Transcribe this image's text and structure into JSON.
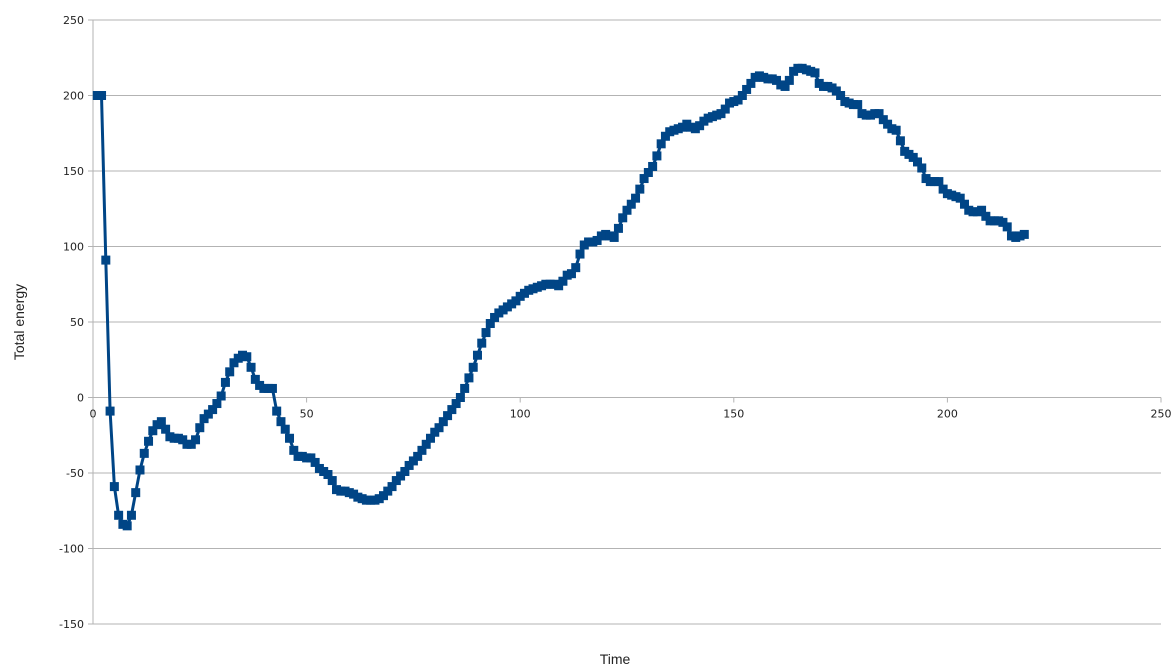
{
  "chart_data": {
    "type": "line",
    "title": "",
    "xlabel": "Time",
    "ylabel": "Total energy",
    "xlim": [
      0,
      250
    ],
    "ylim": [
      -150,
      250
    ],
    "x_ticks": [
      0,
      50,
      100,
      150,
      200,
      250
    ],
    "y_ticks": [
      250,
      200,
      150,
      100,
      50,
      0,
      -50,
      -100,
      -150
    ],
    "grid": "horizontal",
    "legend": "none",
    "colors": {
      "series": "#004586",
      "grid": "#b3b3b3",
      "axis": "#b3b3b3"
    },
    "series": [
      {
        "marker": "square",
        "points": [
          [
            1,
            200
          ],
          [
            2,
            200
          ],
          [
            3,
            91
          ],
          [
            4,
            -9
          ],
          [
            5,
            -59
          ],
          [
            6,
            -78
          ],
          [
            7,
            -84
          ],
          [
            8,
            -85
          ],
          [
            9,
            -78
          ],
          [
            10,
            -63
          ],
          [
            11,
            -48
          ],
          [
            12,
            -37
          ],
          [
            13,
            -29
          ],
          [
            14,
            -22
          ],
          [
            15,
            -18
          ],
          [
            16,
            -16
          ],
          [
            17,
            -21
          ],
          [
            18,
            -26
          ],
          [
            19,
            -27
          ],
          [
            20,
            -27
          ],
          [
            21,
            -28
          ],
          [
            22,
            -31
          ],
          [
            23,
            -31
          ],
          [
            24,
            -28
          ],
          [
            25,
            -20
          ],
          [
            26,
            -14
          ],
          [
            27,
            -11
          ],
          [
            28,
            -8
          ],
          [
            29,
            -4
          ],
          [
            30,
            1
          ],
          [
            31,
            10
          ],
          [
            32,
            17
          ],
          [
            33,
            23
          ],
          [
            34,
            26
          ],
          [
            35,
            28
          ],
          [
            36,
            27
          ],
          [
            37,
            20
          ],
          [
            38,
            12
          ],
          [
            39,
            8
          ],
          [
            40,
            6
          ],
          [
            41,
            6
          ],
          [
            42,
            6
          ],
          [
            43,
            -9
          ],
          [
            44,
            -16
          ],
          [
            45,
            -21
          ],
          [
            46,
            -27
          ],
          [
            47,
            -35
          ],
          [
            48,
            -39
          ],
          [
            49,
            -39
          ],
          [
            50,
            -40
          ],
          [
            51,
            -40
          ],
          [
            52,
            -43
          ],
          [
            53,
            -47
          ],
          [
            54,
            -49
          ],
          [
            55,
            -51
          ],
          [
            56,
            -55
          ],
          [
            57,
            -61
          ],
          [
            58,
            -62
          ],
          [
            59,
            -62
          ],
          [
            60,
            -63
          ],
          [
            61,
            -64
          ],
          [
            62,
            -66
          ],
          [
            63,
            -67
          ],
          [
            64,
            -68
          ],
          [
            65,
            -68
          ],
          [
            66,
            -68
          ],
          [
            67,
            -67
          ],
          [
            68,
            -65
          ],
          [
            69,
            -62
          ],
          [
            70,
            -59
          ],
          [
            71,
            -55
          ],
          [
            72,
            -52
          ],
          [
            73,
            -49
          ],
          [
            74,
            -45
          ],
          [
            75,
            -42
          ],
          [
            76,
            -39
          ],
          [
            77,
            -35
          ],
          [
            78,
            -31
          ],
          [
            79,
            -27
          ],
          [
            80,
            -23
          ],
          [
            81,
            -20
          ],
          [
            82,
            -16
          ],
          [
            83,
            -12
          ],
          [
            84,
            -8
          ],
          [
            85,
            -4
          ],
          [
            86,
            0
          ],
          [
            87,
            6
          ],
          [
            88,
            13
          ],
          [
            89,
            20
          ],
          [
            90,
            28
          ],
          [
            91,
            36
          ],
          [
            92,
            43
          ],
          [
            93,
            49
          ],
          [
            94,
            53
          ],
          [
            95,
            56
          ],
          [
            96,
            58
          ],
          [
            97,
            60
          ],
          [
            98,
            62
          ],
          [
            99,
            64
          ],
          [
            100,
            67
          ],
          [
            101,
            69
          ],
          [
            102,
            71
          ],
          [
            103,
            72
          ],
          [
            104,
            73
          ],
          [
            105,
            74
          ],
          [
            106,
            75
          ],
          [
            107,
            75
          ],
          [
            108,
            75
          ],
          [
            109,
            74
          ],
          [
            110,
            77
          ],
          [
            111,
            81
          ],
          [
            112,
            82
          ],
          [
            113,
            86
          ],
          [
            114,
            95
          ],
          [
            115,
            101
          ],
          [
            116,
            103
          ],
          [
            117,
            103
          ],
          [
            118,
            104
          ],
          [
            119,
            107
          ],
          [
            120,
            108
          ],
          [
            121,
            107
          ],
          [
            122,
            106
          ],
          [
            123,
            112
          ],
          [
            124,
            119
          ],
          [
            125,
            124
          ],
          [
            126,
            128
          ],
          [
            127,
            132
          ],
          [
            128,
            138
          ],
          [
            129,
            145
          ],
          [
            130,
            149
          ],
          [
            131,
            153
          ],
          [
            132,
            160
          ],
          [
            133,
            168
          ],
          [
            134,
            173
          ],
          [
            135,
            176
          ],
          [
            136,
            177
          ],
          [
            137,
            178
          ],
          [
            138,
            179
          ],
          [
            139,
            181
          ],
          [
            140,
            179
          ],
          [
            141,
            178
          ],
          [
            142,
            180
          ],
          [
            143,
            183
          ],
          [
            144,
            185
          ],
          [
            145,
            186
          ],
          [
            146,
            187
          ],
          [
            147,
            188
          ],
          [
            148,
            191
          ],
          [
            149,
            195
          ],
          [
            150,
            196
          ],
          [
            151,
            197
          ],
          [
            152,
            200
          ],
          [
            153,
            204
          ],
          [
            154,
            208
          ],
          [
            155,
            212
          ],
          [
            156,
            213
          ],
          [
            157,
            212
          ],
          [
            158,
            211
          ],
          [
            159,
            211
          ],
          [
            160,
            210
          ],
          [
            161,
            207
          ],
          [
            162,
            206
          ],
          [
            163,
            210
          ],
          [
            164,
            216
          ],
          [
            165,
            218
          ],
          [
            166,
            218
          ],
          [
            167,
            217
          ],
          [
            168,
            216
          ],
          [
            169,
            215
          ],
          [
            170,
            208
          ],
          [
            171,
            206
          ],
          [
            172,
            206
          ],
          [
            173,
            205
          ],
          [
            174,
            203
          ],
          [
            175,
            200
          ],
          [
            176,
            196
          ],
          [
            177,
            195
          ],
          [
            178,
            194
          ],
          [
            179,
            194
          ],
          [
            180,
            188
          ],
          [
            181,
            187
          ],
          [
            182,
            187
          ],
          [
            183,
            188
          ],
          [
            184,
            188
          ],
          [
            185,
            184
          ],
          [
            186,
            181
          ],
          [
            187,
            178
          ],
          [
            188,
            177
          ],
          [
            189,
            170
          ],
          [
            190,
            163
          ],
          [
            191,
            161
          ],
          [
            192,
            159
          ],
          [
            193,
            156
          ],
          [
            194,
            152
          ],
          [
            195,
            145
          ],
          [
            196,
            143
          ],
          [
            197,
            143
          ],
          [
            198,
            143
          ],
          [
            199,
            138
          ],
          [
            200,
            135
          ],
          [
            201,
            134
          ],
          [
            202,
            133
          ],
          [
            203,
            132
          ],
          [
            204,
            128
          ],
          [
            205,
            124
          ],
          [
            206,
            123
          ],
          [
            207,
            123
          ],
          [
            208,
            124
          ],
          [
            209,
            120
          ],
          [
            210,
            117
          ],
          [
            211,
            117
          ],
          [
            212,
            117
          ],
          [
            213,
            116
          ],
          [
            214,
            113
          ],
          [
            215,
            107
          ],
          [
            216,
            106
          ],
          [
            217,
            107
          ],
          [
            218,
            108
          ]
        ]
      }
    ]
  }
}
